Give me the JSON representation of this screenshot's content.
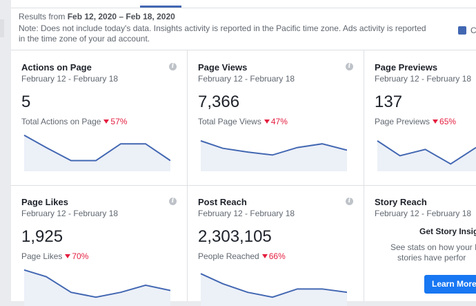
{
  "header": {
    "results_prefix": "Results from ",
    "results_range": "Feb 12, 2020 – Feb 18, 2020",
    "note": "Note: Does not include today's data. Insights activity is reported in the Pacific time zone. Ads activity is reported in the time zone of your ad account.",
    "legend_label": "C",
    "legend_color": "#4267b2"
  },
  "cards": [
    {
      "title": "Actions on Page",
      "date_range": "February 12 - February 18",
      "value": "5",
      "sub_label": "Total Actions on Page",
      "delta": "57%",
      "spark": [
        0.93,
        0.6,
        0.25,
        0.25,
        0.7,
        0.7,
        0.25
      ]
    },
    {
      "title": "Page Views",
      "date_range": "February 12 - February 18",
      "value": "7,366",
      "sub_label": "Total Page Views",
      "delta": "47%",
      "spark": [
        0.78,
        0.58,
        0.48,
        0.4,
        0.6,
        0.7,
        0.53
      ]
    },
    {
      "title": "Page Previews",
      "date_range": "February 12 - February 18",
      "value": "137",
      "sub_label": "Page Previews",
      "delta": "65%",
      "spark": [
        0.78,
        0.38,
        0.55,
        0.16,
        0.6
      ]
    },
    {
      "title": "Page Likes",
      "date_range": "February 12 - February 18",
      "value": "1,925",
      "sub_label": "Page Likes",
      "delta": "70%",
      "spark": [
        0.93,
        0.75,
        0.33,
        0.2,
        0.33,
        0.52,
        0.38
      ]
    },
    {
      "title": "Post Reach",
      "date_range": "February 12 - February 18",
      "value": "2,303,105",
      "sub_label": "People Reached",
      "delta": "66%",
      "spark": [
        0.83,
        0.56,
        0.33,
        0.2,
        0.42,
        0.42,
        0.33
      ]
    }
  ],
  "story": {
    "title": "Story Reach",
    "date_range": "February 12 - February 18",
    "heading": "Get Story Insigh",
    "desc_line1": "See stats on how your Pa",
    "desc_line2": "stories have perfor",
    "button_label": "Learn More"
  },
  "icons": {
    "info": "info-icon",
    "legend": "legend-swatch"
  }
}
